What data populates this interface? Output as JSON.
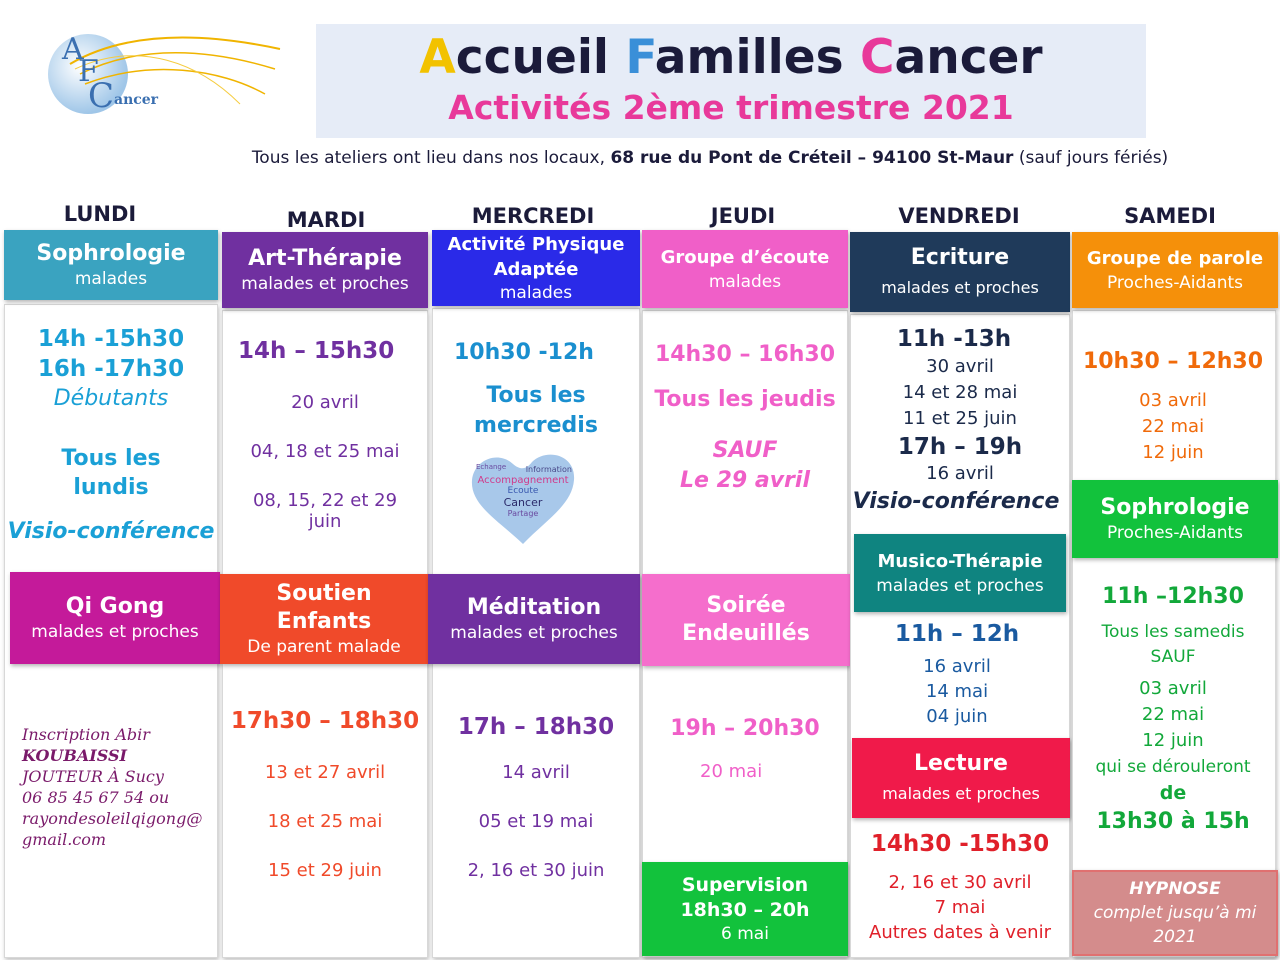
{
  "title": {
    "a": "A",
    "ccueil": "ccueil ",
    "f": "F",
    "amilles": "amilles ",
    "c": "C",
    "ancer": "ancer",
    "subtitle": "Activités 2ème trimestre 2021"
  },
  "logo": {
    "letters_a": "A",
    "letters_f": "F",
    "letters_c": "C",
    "word": "ancer"
  },
  "address": {
    "pre": "Tous les ateliers ont lieu dans nos locaux, ",
    "addr": "68 rue du Pont de Créteil – 94100 St-Maur",
    "post": " (sauf jours fériés)"
  },
  "colors": {
    "yellow": "#f2c200",
    "blue": "#3a8fd8",
    "pink": "#e8399a",
    "subtitle": "#e8399a"
  },
  "days": [
    "LUNDI",
    "MARDI",
    "MERCREDI",
    "JEUDI",
    "VENDREDI",
    "SAMEDI"
  ],
  "lundi": {
    "sophro": {
      "title": "Sophrologie",
      "sub": "malades"
    },
    "times": [
      "14h -15h30",
      "16h -17h30"
    ],
    "level": "Débutants",
    "freq1": "Tous les",
    "freq2": "lundis",
    "visio": "Visio-conférence",
    "qigong": {
      "title": "Qi Gong",
      "sub": "malades et proches"
    },
    "inscription": [
      "Inscription Abir",
      "KOUBAISSI",
      "JOUTEUR À Sucy",
      "06 85 45 67 54 ou",
      "rayondesoleilqigong@",
      "gmail.com"
    ]
  },
  "mardi": {
    "art": {
      "title": "Art-Thérapie",
      "sub": "malades et proches"
    },
    "time": "14h – 15h30",
    "dates": [
      "20 avril",
      "04, 18 et 25 mai",
      "08, 15, 22 et 29",
      "juin"
    ],
    "soutien": {
      "title1": "Soutien",
      "title2": "Enfants",
      "sub": "De parent malade"
    },
    "time2": "17h30 – 18h30",
    "dates2": [
      "13 et 27 avril",
      "18 et 25 mai",
      "15 et 29 juin"
    ]
  },
  "mercredi": {
    "apa": {
      "title1": "Activité Physique",
      "title2": "Adaptée",
      "sub": "malades"
    },
    "time": "10h30 -12h",
    "freq1": "Tous les",
    "freq2": "mercredis",
    "heart": [
      "Echange",
      "Information",
      "Accompagnement",
      "Ecoute",
      "Cancer",
      "Partage"
    ],
    "medit": {
      "title": "Méditation",
      "sub": "malades et proches"
    },
    "time2": "17h – 18h30",
    "dates2": [
      "14 avril",
      "05 et 19 mai",
      "2, 16 et 30 juin"
    ]
  },
  "jeudi": {
    "ecoute": {
      "title": "Groupe d’écoute",
      "sub": "malades"
    },
    "time": "14h30 – 16h30",
    "freq": "Tous les jeudis",
    "sauf": "SAUF",
    "sauf2": "Le 29 avril",
    "soiree": {
      "title1": "Soirée",
      "title2": "Endeuillés"
    },
    "time2": "19h – 20h30",
    "date2": "20 mai",
    "supervision": {
      "title": "Supervision",
      "time": "18h30 – 20h",
      "date": "6 mai"
    }
  },
  "vendredi": {
    "ecriture": {
      "title": "Ecriture",
      "sub": "malades et proches"
    },
    "time": "11h -13h",
    "dates": [
      "30 avril",
      "14 et 28 mai",
      "11 et 25 juin"
    ],
    "time_b": "17h – 19h",
    "date_b": "16 avril",
    "visio": "Visio-conférence",
    "musico": {
      "title": "Musico-Thérapie",
      "sub": "malades et proches"
    },
    "time2": "11h – 12h",
    "dates2": [
      "16 avril",
      "14 mai",
      "04 juin"
    ],
    "lecture": {
      "title": "Lecture",
      "sub": "malades et proches"
    },
    "time3": "14h30 -15h30",
    "dates3": [
      "2, 16 et 30 avril",
      "7 mai",
      "Autres dates à venir"
    ]
  },
  "samedi": {
    "parole": {
      "title": "Groupe de parole",
      "sub": "Proches-Aidants"
    },
    "time": "10h30 – 12h30",
    "dates": [
      "03 avril",
      "22 mai",
      "12 juin"
    ],
    "sophro": {
      "title": "Sophrologie",
      "sub": "Proches-Aidants"
    },
    "time2": "11h –12h30",
    "freq1": "Tous les samedis",
    "sauf": "SAUF",
    "dates2": [
      "03 avril",
      "22 mai",
      "12 juin"
    ],
    "note1": "qui se dérouleront",
    "de": "de",
    "time3": "13h30 à 15h",
    "hypnose": {
      "title": "HYPNOSE",
      "sub1": "complet jusqu’à mi",
      "sub2": "2021"
    }
  }
}
